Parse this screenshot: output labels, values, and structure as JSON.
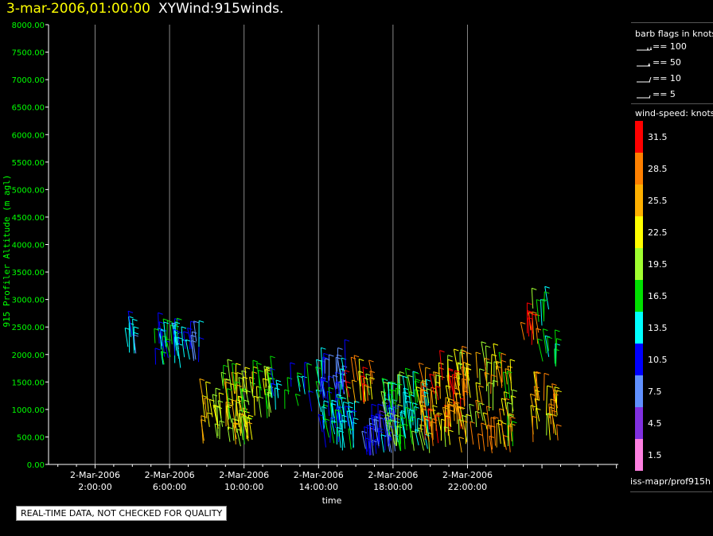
{
  "header": {
    "timestamp": "3-mar-2006,01:00:00",
    "title": "XYWind:915winds."
  },
  "legend": {
    "barb_title": "barb flags in knots",
    "barbs": [
      {
        "label": "== 100",
        "kind": "triangle"
      },
      {
        "label": "== 50",
        "kind": "pennant"
      },
      {
        "label": "== 10",
        "kind": "full"
      },
      {
        "label": "== 5",
        "kind": "half"
      }
    ],
    "speed_title": "wind-speed: knots",
    "colorbar": [
      {
        "label": "31.5",
        "color": "#ff0000"
      },
      {
        "label": "28.5",
        "color": "#ff8000"
      },
      {
        "label": "25.5",
        "color": "#ffb000"
      },
      {
        "label": "22.5",
        "color": "#ffff00"
      },
      {
        "label": "19.5",
        "color": "#a0ff30"
      },
      {
        "label": "16.5",
        "color": "#00e000"
      },
      {
        "label": "13.5",
        "color": "#00ffff"
      },
      {
        "label": "10.5",
        "color": "#0000ff"
      },
      {
        "label": "7.5",
        "color": "#6090ff"
      },
      {
        "label": "4.5",
        "color": "#8030e0"
      },
      {
        "label": "1.5",
        "color": "#ff80e0"
      }
    ],
    "footer": "iss-mapr/prof915h"
  },
  "notice": "REAL-TIME DATA, NOT CHECKED FOR QUALITY",
  "chart_data": {
    "type": "scatter",
    "title": "XYWind:915winds.",
    "xlabel": "time",
    "ylabel": "915 Profiler Altitude (m agl)",
    "ylim": [
      0,
      8000
    ],
    "xlim_hours": [
      -0.5,
      30.1
    ],
    "yticks": [
      "0.00",
      "500.00",
      "1000.00",
      "1500.00",
      "2000.00",
      "2500.00",
      "3000.00",
      "3500.00",
      "4000.00",
      "4500.00",
      "5000.00",
      "5500.00",
      "6000.00",
      "6500.00",
      "7000.00",
      "7500.00",
      "8000.00"
    ],
    "xticks": [
      {
        "hour": 2,
        "line1": "2-Mar-2006",
        "line2": "2:00:00"
      },
      {
        "hour": 6,
        "line1": "2-Mar-2006",
        "line2": "6:00:00"
      },
      {
        "hour": 10,
        "line1": "2-Mar-2006",
        "line2": "10:00:00"
      },
      {
        "hour": 14,
        "line1": "2-Mar-2006",
        "line2": "14:00:00"
      },
      {
        "hour": 18,
        "line1": "2-Mar-2006",
        "line2": "18:00:00"
      },
      {
        "hour": 22,
        "line1": "2-Mar-2006",
        "line2": "22:00:00"
      }
    ],
    "grid": "vertical",
    "colors": {
      "axis_label": "#00ff00",
      "tick_label": "#00ff00",
      "grid": "#888888",
      "axis": "#ffffff"
    },
    "wind_clusters": [
      {
        "t": [
          3.7,
          4.3
        ],
        "alt": [
          1950,
          2350
        ],
        "speed": [
          7,
          16
        ],
        "n": 8
      },
      {
        "t": [
          5.0,
          7.6
        ],
        "alt": [
          1750,
          2250
        ],
        "speed": [
          8,
          18
        ],
        "n": 40
      },
      {
        "t": [
          7.8,
          8.8
        ],
        "alt": [
          300,
          1100
        ],
        "speed": [
          18,
          26
        ],
        "n": 16
      },
      {
        "t": [
          8.8,
          10.5
        ],
        "alt": [
          300,
          1500
        ],
        "speed": [
          17,
          26
        ],
        "n": 55
      },
      {
        "t": [
          10.5,
          11.5
        ],
        "alt": [
          800,
          1450
        ],
        "speed": [
          14,
          24
        ],
        "n": 18
      },
      {
        "t": [
          11.5,
          14.5
        ],
        "alt": [
          950,
          1500
        ],
        "speed": [
          10,
          18
        ],
        "n": 22
      },
      {
        "t": [
          14.0,
          15.5
        ],
        "alt": [
          1100,
          1750
        ],
        "speed": [
          6,
          14
        ],
        "n": 26
      },
      {
        "t": [
          14.2,
          16.0
        ],
        "alt": [
          250,
          900
        ],
        "speed": [
          9,
          17
        ],
        "n": 40
      },
      {
        "t": [
          15.5,
          17.0
        ],
        "alt": [
          1100,
          1550
        ],
        "speed": [
          20,
          32
        ],
        "n": 18
      },
      {
        "t": [
          16.5,
          18.2
        ],
        "alt": [
          150,
          900
        ],
        "speed": [
          5,
          12
        ],
        "n": 45
      },
      {
        "t": [
          17.5,
          20.0
        ],
        "alt": [
          200,
          1300
        ],
        "speed": [
          12,
          20
        ],
        "n": 70
      },
      {
        "t": [
          19.5,
          22.0
        ],
        "alt": [
          300,
          1600
        ],
        "speed": [
          20,
          32
        ],
        "n": 80
      },
      {
        "t": [
          21.5,
          24.5
        ],
        "alt": [
          200,
          1750
        ],
        "speed": [
          17,
          30
        ],
        "n": 70
      },
      {
        "t": [
          25.0,
          25.9
        ],
        "alt": [
          2150,
          2450
        ],
        "speed": [
          26,
          32
        ],
        "n": 10
      },
      {
        "t": [
          25.5,
          26.4
        ],
        "alt": [
          2500,
          2850
        ],
        "speed": [
          14,
          20
        ],
        "n": 6
      },
      {
        "t": [
          26.0,
          26.8
        ],
        "alt": [
          1750,
          2150
        ],
        "speed": [
          10,
          18
        ],
        "n": 8
      },
      {
        "t": [
          25.5,
          26.9
        ],
        "alt": [
          300,
          1200
        ],
        "speed": [
          20,
          30
        ],
        "n": 25
      }
    ]
  }
}
